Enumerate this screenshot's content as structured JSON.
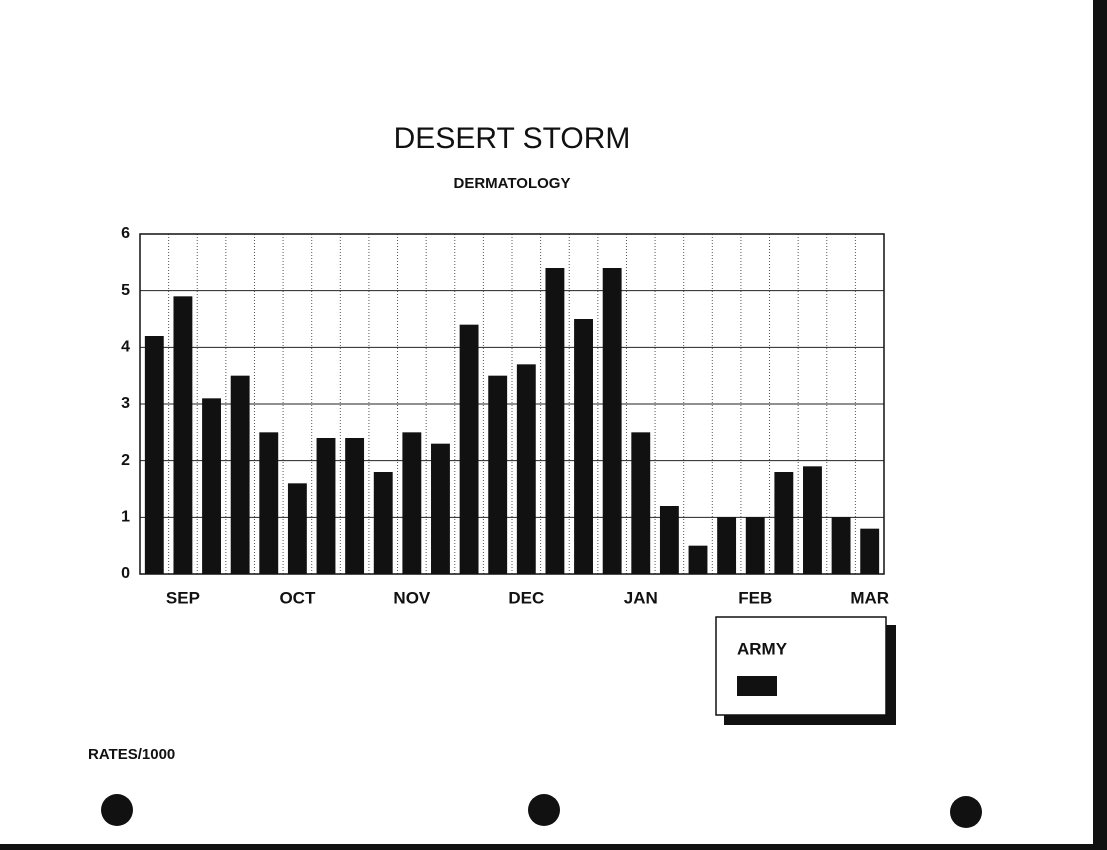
{
  "chart_data": {
    "type": "bar",
    "title": "DESERT STORM",
    "subtitle": "DERMATOLOGY",
    "categories": [
      null,
      "SEP",
      null,
      null,
      null,
      "OCT",
      null,
      null,
      null,
      "NOV",
      null,
      null,
      null,
      "DEC",
      null,
      null,
      null,
      "JAN",
      null,
      null,
      null,
      "FEB",
      null,
      null,
      null,
      "MAR"
    ],
    "series": [
      {
        "name": "ARMY",
        "color": "#111111",
        "values": [
          4.2,
          4.9,
          3.1,
          3.5,
          2.5,
          1.6,
          2.4,
          2.4,
          1.8,
          2.5,
          2.3,
          4.4,
          3.5,
          3.7,
          5.4,
          4.5,
          5.4,
          2.5,
          1.2,
          0.5,
          1.0,
          1.0,
          1.8,
          1.9,
          1.0,
          0.8
        ]
      }
    ],
    "ylim": [
      0,
      6
    ],
    "yticks": [
      0,
      1,
      2,
      3,
      4,
      5,
      6
    ],
    "grid": true,
    "legend": "bottom-right",
    "annotation": "RATES/1000"
  }
}
